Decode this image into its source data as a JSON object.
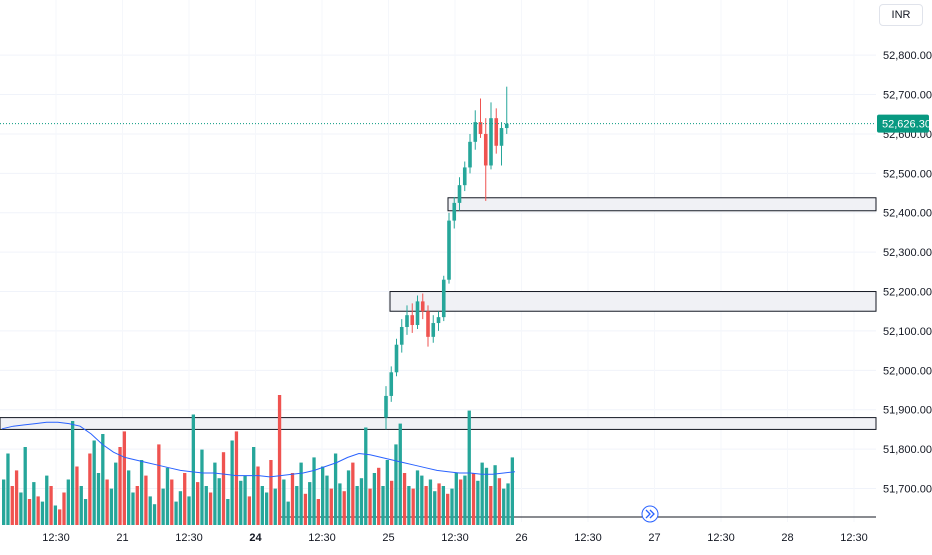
{
  "currency": "INR",
  "colors": {
    "up": "#26a69a",
    "down": "#ef5350",
    "vol_up": "#26a69a",
    "vol_down": "#ef5350",
    "ma": "#2962ff",
    "zone_fill": "#f0f1f5",
    "zone_stroke": "#131722",
    "last_price": "#089981"
  },
  "last_price": {
    "value": 52626.3,
    "label": "52,626.30"
  },
  "chart_data": {
    "type": "candlestick",
    "y_axis": {
      "min": 51615,
      "max": 52940,
      "ticks": [
        {
          "value": 52800,
          "label": "52,800.00"
        },
        {
          "value": 52700,
          "label": "52,700.00"
        },
        {
          "value": 52600,
          "label": "52,600.00"
        },
        {
          "value": 52500,
          "label": "52,500.00"
        },
        {
          "value": 52400,
          "label": "52,400.00"
        },
        {
          "value": 52300,
          "label": "52,300.00"
        },
        {
          "value": 52200,
          "label": "52,200.00"
        },
        {
          "value": 52100,
          "label": "52,100.00"
        },
        {
          "value": 52000,
          "label": "52,000.00"
        },
        {
          "value": 51900,
          "label": "51,900.00"
        },
        {
          "value": 51800,
          "label": "51,800.00"
        },
        {
          "value": 51700,
          "label": "51,700.00"
        }
      ]
    },
    "x_axis": {
      "labels": [
        {
          "label": "12:30",
          "bold": false
        },
        {
          "label": "21",
          "bold": false
        },
        {
          "label": "12:30",
          "bold": false
        },
        {
          "label": "24",
          "bold": true
        },
        {
          "label": "12:30",
          "bold": false
        },
        {
          "label": "25",
          "bold": false
        },
        {
          "label": "12:30",
          "bold": false
        },
        {
          "label": "26",
          "bold": false
        },
        {
          "label": "12:30",
          "bold": false
        },
        {
          "label": "27",
          "bold": false
        },
        {
          "label": "12:30",
          "bold": false
        },
        {
          "label": "28",
          "bold": false
        },
        {
          "label": "12:30",
          "bold": false
        }
      ]
    },
    "candles": [
      {
        "o": 51880,
        "h": 51960,
        "l": 51850,
        "c": 51935
      },
      {
        "o": 51935,
        "h": 52010,
        "l": 51920,
        "c": 51995
      },
      {
        "o": 51995,
        "h": 52080,
        "l": 51985,
        "c": 52065
      },
      {
        "o": 52065,
        "h": 52130,
        "l": 52045,
        "c": 52110
      },
      {
        "o": 52110,
        "h": 52165,
        "l": 52090,
        "c": 52140
      },
      {
        "o": 52140,
        "h": 52170,
        "l": 52095,
        "c": 52115
      },
      {
        "o": 52115,
        "h": 52190,
        "l": 52105,
        "c": 52175
      },
      {
        "o": 52175,
        "h": 52195,
        "l": 52130,
        "c": 52150
      },
      {
        "o": 52150,
        "h": 52165,
        "l": 52060,
        "c": 52085
      },
      {
        "o": 52085,
        "h": 52140,
        "l": 52070,
        "c": 52120
      },
      {
        "o": 52120,
        "h": 52150,
        "l": 52100,
        "c": 52135
      },
      {
        "o": 52135,
        "h": 52240,
        "l": 52125,
        "c": 52230
      },
      {
        "o": 52230,
        "h": 52400,
        "l": 52220,
        "c": 52380
      },
      {
        "o": 52380,
        "h": 52440,
        "l": 52360,
        "c": 52425
      },
      {
        "o": 52425,
        "h": 52490,
        "l": 52405,
        "c": 52470
      },
      {
        "o": 52470,
        "h": 52530,
        "l": 52455,
        "c": 52515
      },
      {
        "o": 52515,
        "h": 52600,
        "l": 52500,
        "c": 52580
      },
      {
        "o": 52580,
        "h": 52660,
        "l": 52560,
        "c": 52630
      },
      {
        "o": 52630,
        "h": 52690,
        "l": 52590,
        "c": 52600
      },
      {
        "o": 52600,
        "h": 52640,
        "l": 52430,
        "c": 52520
      },
      {
        "o": 52520,
        "h": 52680,
        "l": 52510,
        "c": 52640
      },
      {
        "o": 52640,
        "h": 52665,
        "l": 52550,
        "c": 52570
      },
      {
        "o": 52570,
        "h": 52630,
        "l": 52520,
        "c": 52615
      },
      {
        "o": 52615,
        "h": 52720,
        "l": 52600,
        "c": 52626
      }
    ],
    "zones": [
      {
        "top": 52438,
        "bottom": 52405
      },
      {
        "top": 52200,
        "bottom": 52150
      },
      {
        "top": 51880,
        "bottom": 51850
      }
    ],
    "volume": [
      {
        "v": 0.35,
        "up": true
      },
      {
        "v": 0.55,
        "up": true
      },
      {
        "v": 0.3,
        "up": false
      },
      {
        "v": 0.42,
        "up": false
      },
      {
        "v": 0.25,
        "up": true
      },
      {
        "v": 0.6,
        "up": true
      },
      {
        "v": 0.2,
        "up": false
      },
      {
        "v": 0.33,
        "up": true
      },
      {
        "v": 0.22,
        "up": false
      },
      {
        "v": 0.18,
        "up": true
      },
      {
        "v": 0.38,
        "up": true
      },
      {
        "v": 0.3,
        "up": false
      },
      {
        "v": 0.15,
        "up": true
      },
      {
        "v": 0.12,
        "up": false
      },
      {
        "v": 0.25,
        "up": false
      },
      {
        "v": 0.35,
        "up": true
      },
      {
        "v": 0.8,
        "up": true
      },
      {
        "v": 0.45,
        "up": false
      },
      {
        "v": 0.3,
        "up": true
      },
      {
        "v": 0.2,
        "up": true
      },
      {
        "v": 0.55,
        "up": false
      },
      {
        "v": 0.65,
        "up": true
      },
      {
        "v": 0.4,
        "up": true
      },
      {
        "v": 0.7,
        "up": true
      },
      {
        "v": 0.35,
        "up": false
      },
      {
        "v": 0.28,
        "up": true
      },
      {
        "v": 0.48,
        "up": true
      },
      {
        "v": 0.6,
        "up": false
      },
      {
        "v": 0.72,
        "up": false
      },
      {
        "v": 0.42,
        "up": true
      },
      {
        "v": 0.25,
        "up": true
      },
      {
        "v": 0.3,
        "up": false
      },
      {
        "v": 0.5,
        "up": true
      },
      {
        "v": 0.38,
        "up": false
      },
      {
        "v": 0.22,
        "up": true
      },
      {
        "v": 0.16,
        "up": true
      },
      {
        "v": 0.62,
        "up": false
      },
      {
        "v": 0.28,
        "up": true
      },
      {
        "v": 0.44,
        "up": true
      },
      {
        "v": 0.35,
        "up": false
      },
      {
        "v": 0.18,
        "up": true
      },
      {
        "v": 0.26,
        "up": true
      },
      {
        "v": 0.4,
        "up": false
      },
      {
        "v": 0.22,
        "up": true
      },
      {
        "v": 0.85,
        "up": true
      },
      {
        "v": 0.33,
        "up": false
      },
      {
        "v": 0.58,
        "up": true
      },
      {
        "v": 0.3,
        "up": true
      },
      {
        "v": 0.25,
        "up": false
      },
      {
        "v": 0.48,
        "up": true
      },
      {
        "v": 0.36,
        "up": true
      },
      {
        "v": 0.56,
        "up": false
      },
      {
        "v": 0.2,
        "up": true
      },
      {
        "v": 0.65,
        "up": true
      },
      {
        "v": 0.72,
        "up": false
      },
      {
        "v": 0.34,
        "up": true
      },
      {
        "v": 0.38,
        "up": true
      },
      {
        "v": 0.22,
        "up": false
      },
      {
        "v": 0.6,
        "up": true
      },
      {
        "v": 0.45,
        "up": false
      },
      {
        "v": 0.3,
        "up": true
      },
      {
        "v": 0.25,
        "up": true
      },
      {
        "v": 0.5,
        "up": false
      },
      {
        "v": 0.28,
        "up": true
      },
      {
        "v": 1.0,
        "up": false
      },
      {
        "v": 0.35,
        "up": true
      },
      {
        "v": 0.18,
        "up": true
      },
      {
        "v": 0.4,
        "up": false
      },
      {
        "v": 0.3,
        "up": true
      },
      {
        "v": 0.48,
        "up": true
      },
      {
        "v": 0.24,
        "up": false
      },
      {
        "v": 0.33,
        "up": true
      },
      {
        "v": 0.52,
        "up": true
      },
      {
        "v": 0.2,
        "up": false
      },
      {
        "v": 0.45,
        "up": true
      },
      {
        "v": 0.38,
        "up": true
      },
      {
        "v": 0.28,
        "up": false
      },
      {
        "v": 0.55,
        "up": true
      },
      {
        "v": 0.32,
        "up": true
      },
      {
        "v": 0.26,
        "up": false
      },
      {
        "v": 0.42,
        "up": true
      },
      {
        "v": 0.48,
        "up": false
      },
      {
        "v": 0.3,
        "up": true
      },
      {
        "v": 0.36,
        "up": true
      },
      {
        "v": 0.75,
        "up": true
      },
      {
        "v": 0.28,
        "up": false
      },
      {
        "v": 0.4,
        "up": true
      },
      {
        "v": 0.44,
        "up": false
      },
      {
        "v": 0.3,
        "up": true
      },
      {
        "v": 0.5,
        "up": true
      },
      {
        "v": 0.34,
        "up": false
      },
      {
        "v": 0.62,
        "up": true
      },
      {
        "v": 0.78,
        "up": true
      },
      {
        "v": 0.4,
        "up": false
      },
      {
        "v": 0.3,
        "up": true
      },
      {
        "v": 0.28,
        "up": false
      },
      {
        "v": 0.42,
        "up": true
      },
      {
        "v": 0.38,
        "up": true
      },
      {
        "v": 0.3,
        "up": false
      },
      {
        "v": 0.35,
        "up": true
      },
      {
        "v": 0.26,
        "up": true
      },
      {
        "v": 0.32,
        "up": false
      },
      {
        "v": 0.3,
        "up": true
      },
      {
        "v": 0.24,
        "up": false
      },
      {
        "v": 0.28,
        "up": true
      },
      {
        "v": 0.4,
        "up": true
      },
      {
        "v": 0.35,
        "up": false
      },
      {
        "v": 0.38,
        "up": true
      },
      {
        "v": 0.88,
        "up": true
      },
      {
        "v": 0.4,
        "up": false
      },
      {
        "v": 0.34,
        "up": true
      },
      {
        "v": 0.48,
        "up": true
      },
      {
        "v": 0.44,
        "up": true
      },
      {
        "v": 0.3,
        "up": false
      },
      {
        "v": 0.46,
        "up": true
      },
      {
        "v": 0.36,
        "up": false
      },
      {
        "v": 0.28,
        "up": true
      },
      {
        "v": 0.32,
        "up": true
      },
      {
        "v": 0.52,
        "up": true
      }
    ],
    "volume_ma": [
      0.74,
      0.76,
      0.77,
      0.78,
      0.79,
      0.79,
      0.78,
      0.76,
      0.7,
      0.62,
      0.56,
      0.52,
      0.5,
      0.48,
      0.46,
      0.44,
      0.42,
      0.41,
      0.4,
      0.4,
      0.39,
      0.38,
      0.38,
      0.38,
      0.37,
      0.38,
      0.39,
      0.4,
      0.42,
      0.45,
      0.48,
      0.52,
      0.55,
      0.54,
      0.52,
      0.5,
      0.48,
      0.46,
      0.44,
      0.42,
      0.41,
      0.4,
      0.4,
      0.39,
      0.39,
      0.4,
      0.41
    ]
  }
}
